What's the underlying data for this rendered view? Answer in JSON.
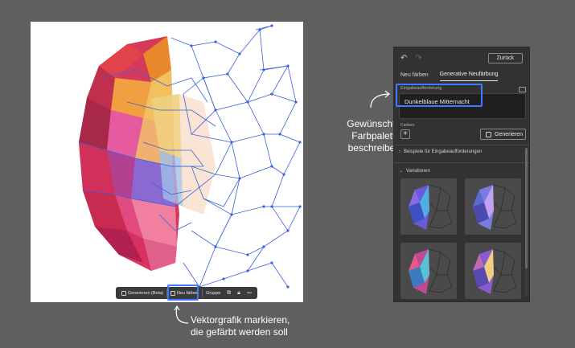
{
  "canvas": {
    "context_toolbar": {
      "generate_label": "Generieren (Beta)",
      "recolor_label": "Neu färben",
      "group_label": "Gruppe",
      "more_label": "•••"
    }
  },
  "annotations": {
    "bottom_line1": "Vektorgrafik markieren,",
    "bottom_line2": "die gefärbt werden soll",
    "right_line1": "Gewünschte",
    "right_line2": "Farbpalette",
    "right_line3": "beschreiben"
  },
  "panel": {
    "undo_icon": "undo-icon",
    "redo_icon": "redo-icon",
    "back_button": "Zurück",
    "tabs": [
      {
        "label": "Neu färben",
        "active": false
      },
      {
        "label": "Generative Neufärbung",
        "active": true
      }
    ],
    "prompt_label": "Eingabeaufforderung",
    "prompt_value": "Dunkelblaue Mitternacht",
    "colors_label": "Farben",
    "generate_button": "Generieren",
    "examples_label": "Beispiele für Eingabeaufforderungen",
    "variations_label": "Variationen"
  },
  "colors": {
    "background": "#5f5f5f",
    "panel": "#323232",
    "highlight": "#3d7bff",
    "vector_blue": "#3a5fe0"
  }
}
